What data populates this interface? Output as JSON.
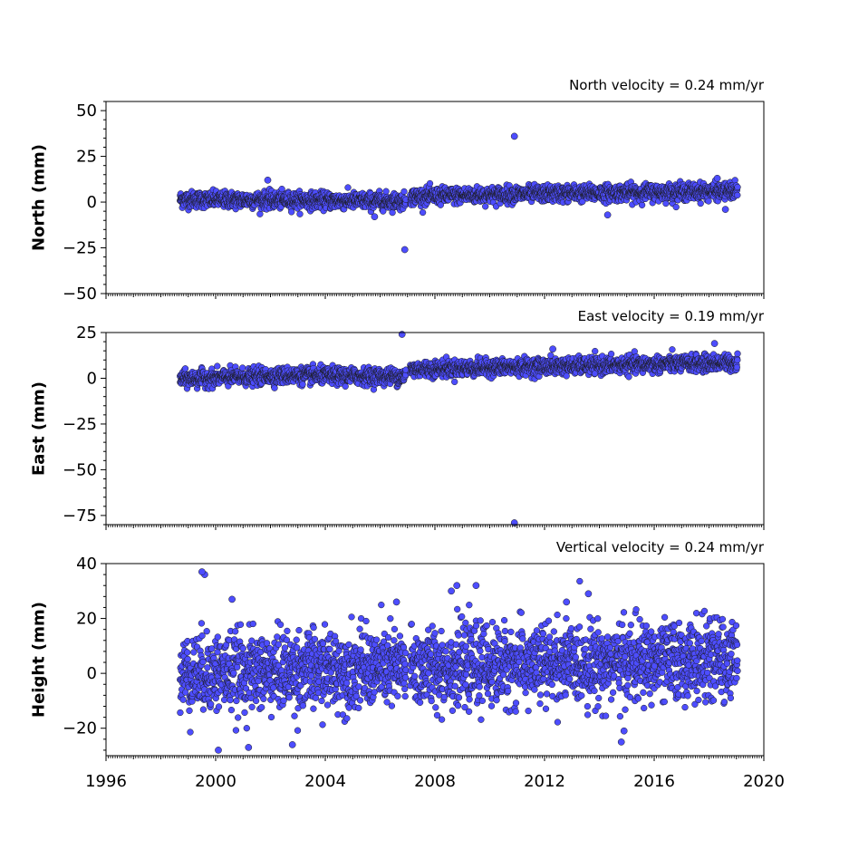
{
  "chart_data": [
    {
      "type": "scatter",
      "id": "north",
      "ylabel": "North (mm)",
      "annotation": "North velocity = 0.24 mm/yr",
      "xlim": [
        1996,
        2020
      ],
      "ylim": [
        -50,
        55
      ],
      "yticks": [
        50,
        25,
        0,
        -25,
        -50
      ],
      "ytick_labels": [
        "50",
        "25",
        "0",
        "−25",
        "−50"
      ],
      "marker_color": "#4d4dff",
      "x_start": 1998.7,
      "x_end": 2019.05,
      "gaps": [
        [
          2006.95,
          2007.1
        ]
      ],
      "trend": [
        [
          1998.7,
          1.5
        ],
        [
          2006.9,
          0.5
        ],
        [
          2007.1,
          3.0
        ],
        [
          2011.5,
          4.5
        ],
        [
          2019.05,
          6.0
        ]
      ],
      "noise_sd": 2.2,
      "outliers": [
        [
          2006.9,
          -26
        ],
        [
          2010.9,
          36
        ],
        [
          2001.9,
          12
        ],
        [
          2005.8,
          -8
        ],
        [
          2014.3,
          -7
        ],
        [
          2018.3,
          13
        ],
        [
          2018.6,
          -4
        ]
      ]
    },
    {
      "type": "scatter",
      "id": "east",
      "ylabel": "East (mm)",
      "annotation": "East velocity = 0.19 mm/yr",
      "xlim": [
        1996,
        2020
      ],
      "ylim": [
        -80,
        25
      ],
      "yticks": [
        25,
        0,
        -25,
        -50,
        -75
      ],
      "ytick_labels": [
        "25",
        "0",
        "−25",
        "−50",
        "−75"
      ],
      "marker_color": "#4d4dff",
      "x_start": 1998.7,
      "x_end": 2019.05,
      "gaps": [
        [
          2006.95,
          2007.1
        ]
      ],
      "trend": [
        [
          1998.7,
          -0.5
        ],
        [
          2002.5,
          1.5
        ],
        [
          2006.9,
          1.0
        ],
        [
          2007.1,
          5.0
        ],
        [
          2019.05,
          8.5
        ]
      ],
      "noise_sd": 2.2,
      "outliers": [
        [
          2006.8,
          24
        ],
        [
          2010.9,
          -79
        ],
        [
          2018.2,
          19
        ],
        [
          2012.3,
          16
        ]
      ]
    },
    {
      "type": "scatter",
      "id": "height",
      "ylabel": "Height (mm)",
      "annotation": "Vertical velocity = 0.24 mm/yr",
      "xlim": [
        1996,
        2020
      ],
      "ylim": [
        -30,
        40
      ],
      "yticks": [
        40,
        20,
        0,
        -20
      ],
      "ytick_labels": [
        "40",
        "20",
        "0",
        "−20"
      ],
      "xticks": [
        1996,
        2000,
        2004,
        2008,
        2012,
        2016,
        2020
      ],
      "xtick_labels": [
        "1996",
        "2000",
        "2004",
        "2008",
        "2012",
        "2016",
        "2020"
      ],
      "marker_color": "#4d4dff",
      "x_start": 1998.7,
      "x_end": 2019.05,
      "gaps": [
        [
          2006.95,
          2007.1
        ]
      ],
      "trend": [
        [
          1998.7,
          0.0
        ],
        [
          2019.05,
          5.0
        ]
      ],
      "noise_sd": 7.0,
      "outliers": [
        [
          1999.6,
          36
        ],
        [
          1999.5,
          37
        ],
        [
          2000.1,
          -28
        ],
        [
          2001.2,
          -27
        ],
        [
          2002.8,
          -26
        ],
        [
          2008.6,
          30
        ],
        [
          2008.8,
          32
        ],
        [
          2009.5,
          32
        ],
        [
          2013.6,
          29
        ],
        [
          2014.8,
          -25
        ],
        [
          2014.9,
          -21
        ],
        [
          2000.6,
          27
        ],
        [
          2006.6,
          26
        ],
        [
          2012.8,
          26
        ]
      ]
    }
  ]
}
